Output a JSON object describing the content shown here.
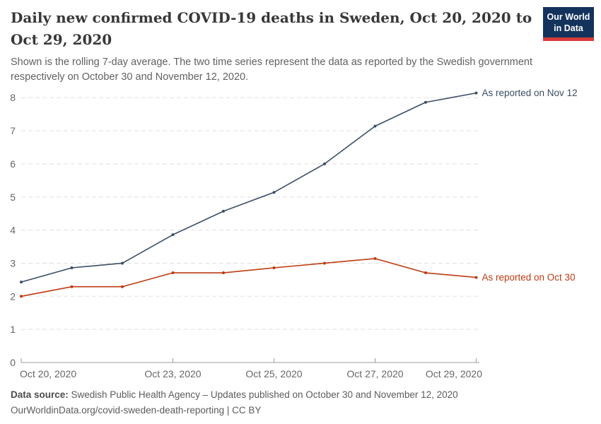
{
  "logo": {
    "line1": "Our World",
    "line2": "in Data",
    "bg_color": "#13335C",
    "bar_color": "#D93A3C"
  },
  "header": {
    "title": "Daily new confirmed COVID-19 deaths in Sweden, Oct 20, 2020 to Oct 29, 2020",
    "subtitle": "Shown is the rolling 7-day average. The two time series represent the data as reported by the Swedish government respectively on October 30 and November 12, 2020."
  },
  "chart_data": {
    "type": "line",
    "title": "Daily new confirmed COVID-19 deaths in Sweden, Oct 20, 2020 to Oct 29, 2020",
    "subtitle": "Shown is the rolling 7-day average. The two time series represent the data as reported by the Swedish government respectively on October 30 and November 12, 2020.",
    "x": [
      "Oct 20, 2020",
      "Oct 21, 2020",
      "Oct 22, 2020",
      "Oct 23, 2020",
      "Oct 24, 2020",
      "Oct 25, 2020",
      "Oct 26, 2020",
      "Oct 27, 2020",
      "Oct 28, 2020",
      "Oct 29, 2020"
    ],
    "series": [
      {
        "name": "As reported on Nov 12",
        "color": "#3C4E66",
        "values": [
          2.43,
          2.86,
          3,
          3.86,
          4.57,
          5.14,
          6,
          7.14,
          7.86,
          8.14
        ]
      },
      {
        "name": "As reported on Oct 30",
        "color": "#BE3B12",
        "values": [
          2,
          2.29,
          2.29,
          2.71,
          2.71,
          2.86,
          3,
          3.14,
          2.71,
          2.57
        ]
      }
    ],
    "xlabel": "",
    "ylabel": "",
    "ylim": [
      0,
      8.6
    ],
    "yticks": [
      0,
      1,
      2,
      3,
      4,
      5,
      6,
      7,
      8
    ],
    "xticks": [
      {
        "index": 0,
        "label": "Oct 20, 2020"
      },
      {
        "index": 3,
        "label": "Oct 23, 2020"
      },
      {
        "index": 5,
        "label": "Oct 25, 2020"
      },
      {
        "index": 7,
        "label": "Oct 27, 2020"
      },
      {
        "index": 9,
        "label": "Oct 29, 2020"
      }
    ],
    "grid": "horizontal-dashed",
    "legend_position": "line-end-labels",
    "colors": {
      "grid": "#E0E0E0",
      "axis": "#9B9B9B",
      "tick_text": "#666666"
    }
  },
  "footer": {
    "source_label": "Data source:",
    "source_text": " Swedish Public Health Agency – Updates published on October 30 and November 12, 2020",
    "url": "OurWorldinData.org/covid-sweden-death-reporting",
    "separator": " | ",
    "license": "CC BY"
  }
}
